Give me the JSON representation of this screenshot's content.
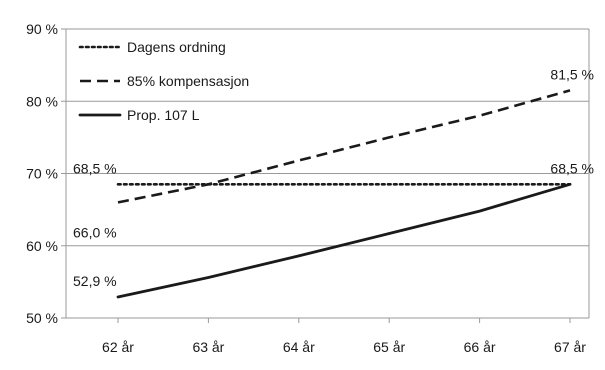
{
  "chart_data": {
    "type": "line",
    "categories": [
      "62 år",
      "63 år",
      "64 år",
      "65 år",
      "66 år",
      "67 år"
    ],
    "series": [
      {
        "name": "Dagens ordning",
        "style": "dotted",
        "values": [
          68.5,
          68.5,
          68.5,
          68.5,
          68.5,
          68.5
        ]
      },
      {
        "name": "85% kompensasjon",
        "style": "dashed",
        "values": [
          66.0,
          68.5,
          71.8,
          75.0,
          78.0,
          81.5
        ]
      },
      {
        "name": "Prop. 107 L",
        "style": "solid",
        "values": [
          52.9,
          55.6,
          58.6,
          61.7,
          64.8,
          68.5
        ]
      }
    ],
    "yticks": [
      50,
      60,
      70,
      80,
      90
    ],
    "ytick_labels": [
      "50 %",
      "60 %",
      "70 %",
      "80 %",
      "90 %"
    ],
    "ylim": [
      50,
      90
    ],
    "grid": "horizontal",
    "legend": "top-left",
    "annotations": [
      {
        "text": "68,5 %",
        "series": 0,
        "index": 0,
        "pos": "above"
      },
      {
        "text": "66,0 %",
        "series": 1,
        "index": 0,
        "pos": "below"
      },
      {
        "text": "52,9 %",
        "series": 2,
        "index": 0,
        "pos": "above"
      },
      {
        "text": "81,5 %",
        "series": 1,
        "index": 5,
        "pos": "above"
      },
      {
        "text": "68,5 %",
        "series": 0,
        "index": 5,
        "pos": "above"
      }
    ],
    "colors": {
      "line": "#1a1a1a",
      "grid": "#9a9a9a",
      "frame": "#9a9a9a"
    }
  }
}
